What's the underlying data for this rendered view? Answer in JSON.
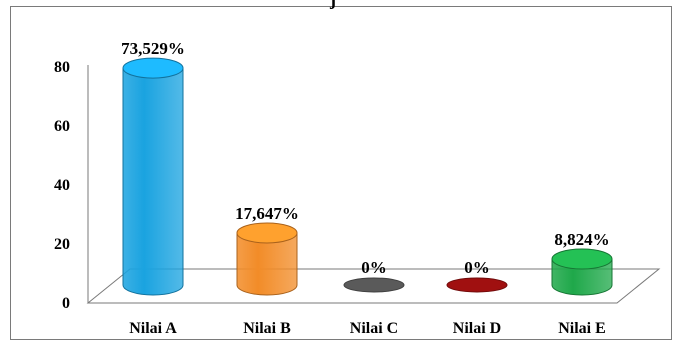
{
  "chart_data": {
    "type": "bar",
    "title_fragment": "j",
    "categories": [
      "Nilai A",
      "Nilai B",
      "Nilai C",
      "Nilai D",
      "Nilai E"
    ],
    "values": [
      73.529,
      17.647,
      0,
      0,
      8.824
    ],
    "data_labels": [
      "73,529%",
      "17,647%",
      "0%",
      "0%",
      "8,824%"
    ],
    "colors": [
      "#1aa3e0",
      "#f28c28",
      "#5a5a5a",
      "#a01010",
      "#1fa84a"
    ],
    "yticks": [
      "0",
      "20",
      "40",
      "60",
      "80"
    ],
    "ylim": [
      0,
      80
    ],
    "grid": false,
    "style": "3d-cylinder"
  }
}
